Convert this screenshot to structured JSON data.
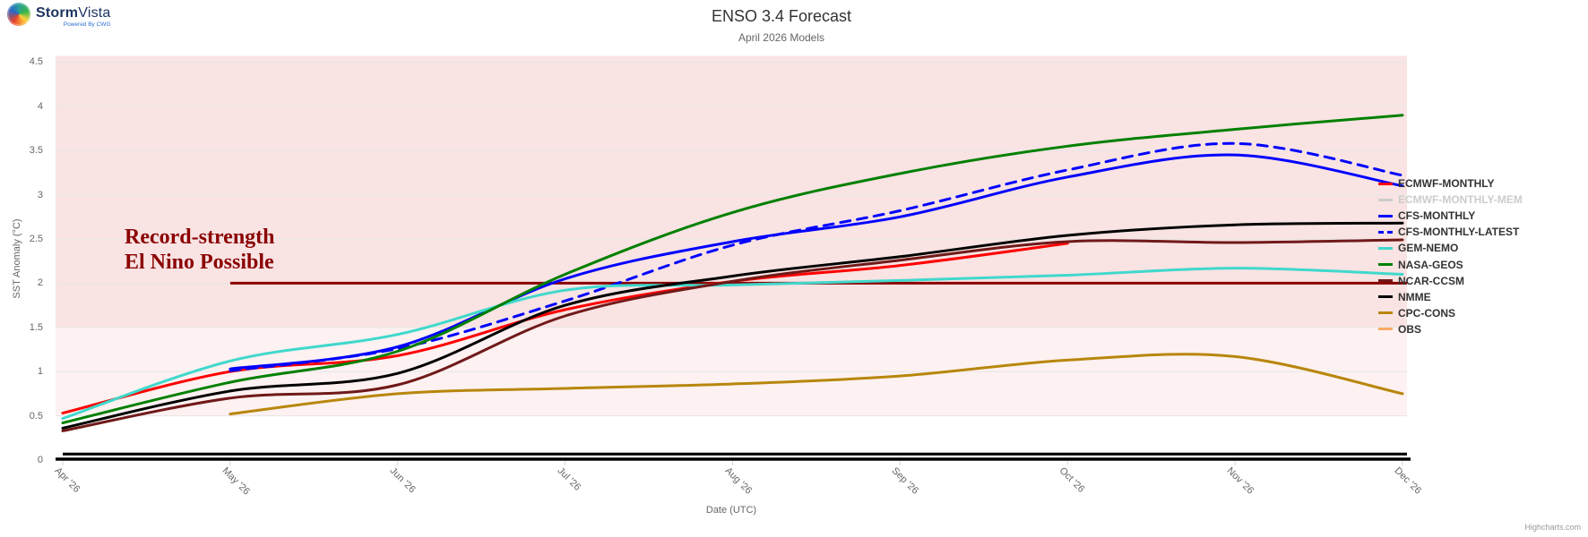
{
  "logo": {
    "brand_bold": "Storm",
    "brand_light": "Vista",
    "tagline": "Powered By CWG"
  },
  "header": {
    "title": "ENSO 3.4 Forecast",
    "subtitle": "April 2026 Models"
  },
  "credit": "Highcharts.com",
  "chart_data": {
    "type": "line",
    "title": "ENSO 3.4 Forecast",
    "subtitle": "April 2026 Models",
    "xlabel": "Date (UTC)",
    "ylabel": "SST Anomaly (°C)",
    "x_tick_labels": [
      "Apr '26",
      "May '26",
      "Jun '26",
      "Jul '26",
      "Aug '26",
      "Sep '26",
      "Oct '26",
      "Nov '26",
      "Dec '26"
    ],
    "y_ticks": [
      0,
      0.5,
      1,
      1.5,
      2,
      2.5,
      3,
      3.5,
      4,
      4.5
    ],
    "y_tick_labels": [
      "0",
      "0.5",
      "1",
      "1.5",
      "2",
      "2.5",
      "3",
      "3.5",
      "4",
      "4.5"
    ],
    "ylim": [
      0,
      4.57
    ],
    "grid": "horizontal",
    "grid_color": "#e7e7e7",
    "legend_position": "right",
    "plot_bands": [
      {
        "from": 0.5,
        "to": 1.5,
        "color": "#fdf1f1"
      },
      {
        "from": 1.5,
        "to": 4.57,
        "color": "#f9e3e3"
      }
    ],
    "plot_lines": [
      {
        "value": 2.0,
        "color": "#8b0000",
        "width": 3,
        "from_month": 1,
        "label": "record-strength threshold"
      },
      {
        "value": 0.0,
        "color": "#000000",
        "width": 3.2,
        "from_month": 0,
        "label": "zero line"
      }
    ],
    "annotation": {
      "line1": "Record-strength",
      "line2": "El Nino Possible",
      "color": "#8b0000"
    },
    "series": [
      {
        "name": "ECMWF-MONTHLY",
        "color": "#ff0000",
        "dash": "solid",
        "hidden": false,
        "start_month": 0,
        "values": [
          0.53,
          1.0,
          1.18,
          1.7,
          2.02,
          2.2,
          2.45
        ]
      },
      {
        "name": "ECMWF-MONTHLY-MEM",
        "color": "#cccccc",
        "dash": "solid",
        "hidden": true,
        "start_month": 0,
        "values": []
      },
      {
        "name": "CFS-MONTHLY",
        "color": "#0000ff",
        "dash": "solid",
        "hidden": false,
        "start_month": 1,
        "values": [
          1.03,
          1.28,
          2.05,
          2.47,
          2.75,
          3.2,
          3.45,
          3.1
        ]
      },
      {
        "name": "CFS-MONTHLY-LATEST",
        "color": "#0000ff",
        "dash": "dashed",
        "hidden": false,
        "start_month": 1,
        "values": [
          1.01,
          1.26,
          1.8,
          2.43,
          2.82,
          3.28,
          3.58,
          3.22
        ]
      },
      {
        "name": "GEM-NEMO",
        "color": "#40d8cc",
        "dash": "solid",
        "hidden": false,
        "start_month": 0,
        "values": [
          0.47,
          1.12,
          1.42,
          1.92,
          1.98,
          2.03,
          2.09,
          2.17,
          2.1
        ]
      },
      {
        "name": "NASA-GEOS",
        "color": "#008000",
        "dash": "solid",
        "hidden": false,
        "start_month": 0,
        "values": [
          0.42,
          0.88,
          1.23,
          2.1,
          2.8,
          3.24,
          3.55,
          3.74,
          3.9
        ]
      },
      {
        "name": "NCAR-CCSM",
        "color": "#701919",
        "dash": "solid",
        "hidden": false,
        "start_month": 0,
        "values": [
          0.33,
          0.7,
          0.85,
          1.63,
          2.02,
          2.26,
          2.47,
          2.46,
          2.49
        ]
      },
      {
        "name": "NMME",
        "color": "#000000",
        "dash": "solid",
        "hidden": false,
        "start_month": 0,
        "values": [
          0.36,
          0.78,
          0.98,
          1.75,
          2.08,
          2.3,
          2.54,
          2.66,
          2.68
        ]
      },
      {
        "name": "CPC-CONS",
        "color": "#b8860b",
        "dash": "solid",
        "hidden": false,
        "start_month": 1,
        "values": [
          0.52,
          0.75,
          0.81,
          0.86,
          0.95,
          1.13,
          1.17,
          0.75
        ]
      },
      {
        "name": "OBS",
        "color": "#fcab64",
        "dash": "solid",
        "hidden": false,
        "start_month": 0,
        "values": []
      }
    ]
  }
}
